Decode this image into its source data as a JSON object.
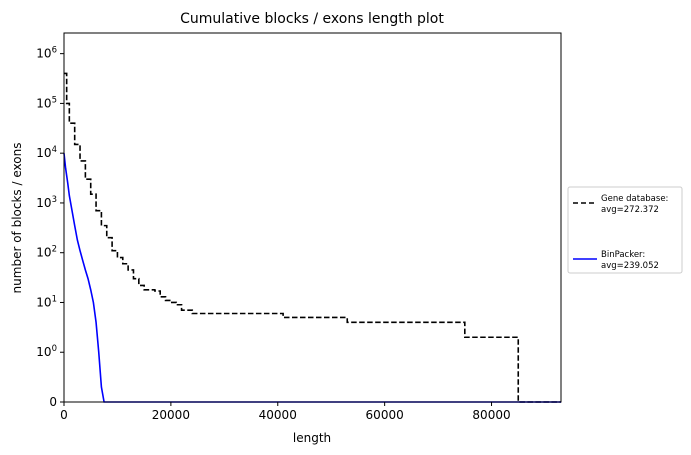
{
  "chart_data": {
    "type": "line",
    "title": "Cumulative blocks / exons length plot",
    "xlabel": "length",
    "ylabel": "number of blocks / exons",
    "xlim": [
      0,
      93000
    ],
    "ylim": [
      0,
      2600000
    ],
    "yscale": "symlog",
    "symlog_linthresh": 1,
    "grid": false,
    "legend_position": "outside-right",
    "x_ticks": [
      {
        "value": 0,
        "label": "0"
      },
      {
        "value": 20000,
        "label": "20000"
      },
      {
        "value": 40000,
        "label": "40000"
      },
      {
        "value": 60000,
        "label": "60000"
      },
      {
        "value": 80000,
        "label": "80000"
      }
    ],
    "y_ticks": [
      {
        "value": 0,
        "base": "0",
        "exp": ""
      },
      {
        "value": 1,
        "base": "10",
        "exp": "0"
      },
      {
        "value": 10,
        "base": "10",
        "exp": "1"
      },
      {
        "value": 100,
        "base": "10",
        "exp": "2"
      },
      {
        "value": 1000,
        "base": "10",
        "exp": "3"
      },
      {
        "value": 10000,
        "base": "10",
        "exp": "4"
      },
      {
        "value": 100000,
        "base": "10",
        "exp": "5"
      },
      {
        "value": 1000000,
        "base": "10",
        "exp": "6"
      }
    ],
    "series": [
      {
        "name": "Gene database:",
        "name_line2": "avg=272.372",
        "color": "#000000",
        "dash": "dashed",
        "step": true,
        "x": [
          0,
          500,
          1000,
          2000,
          3000,
          4000,
          5000,
          6000,
          7000,
          8000,
          9000,
          10000,
          11000,
          12000,
          13000,
          14000,
          15000,
          16000,
          17000,
          18000,
          19000,
          20000,
          21000,
          22000,
          23000,
          24000,
          25000,
          30000,
          35000,
          40000,
          41000,
          45000,
          50000,
          53000,
          60000,
          70000,
          74000,
          75000,
          80000,
          84000,
          85000,
          90000,
          93000
        ],
        "y": [
          400000,
          100000,
          40000,
          15000,
          7000,
          3000,
          1500,
          700,
          350,
          200,
          110,
          80,
          60,
          45,
          30,
          22,
          18,
          18,
          17,
          13,
          11,
          10,
          9,
          7,
          7,
          6,
          6,
          6,
          6,
          6,
          5,
          5,
          5,
          4,
          4,
          4,
          4,
          2,
          2,
          2,
          0,
          0,
          0
        ]
      },
      {
        "name": "BinPacker:",
        "name_line2": "avg=239.052",
        "color": "#0000ff",
        "dash": "solid",
        "step": false,
        "x": [
          0,
          300,
          700,
          1000,
          1500,
          2000,
          2500,
          3000,
          3500,
          4000,
          4500,
          5000,
          5500,
          6000,
          6500,
          7000,
          7500,
          8000,
          30000,
          60000,
          93000
        ],
        "y": [
          10000,
          5000,
          2500,
          1400,
          700,
          350,
          180,
          110,
          70,
          45,
          30,
          18,
          10,
          4,
          1,
          0.3,
          0,
          0,
          0,
          0,
          0
        ]
      }
    ]
  }
}
